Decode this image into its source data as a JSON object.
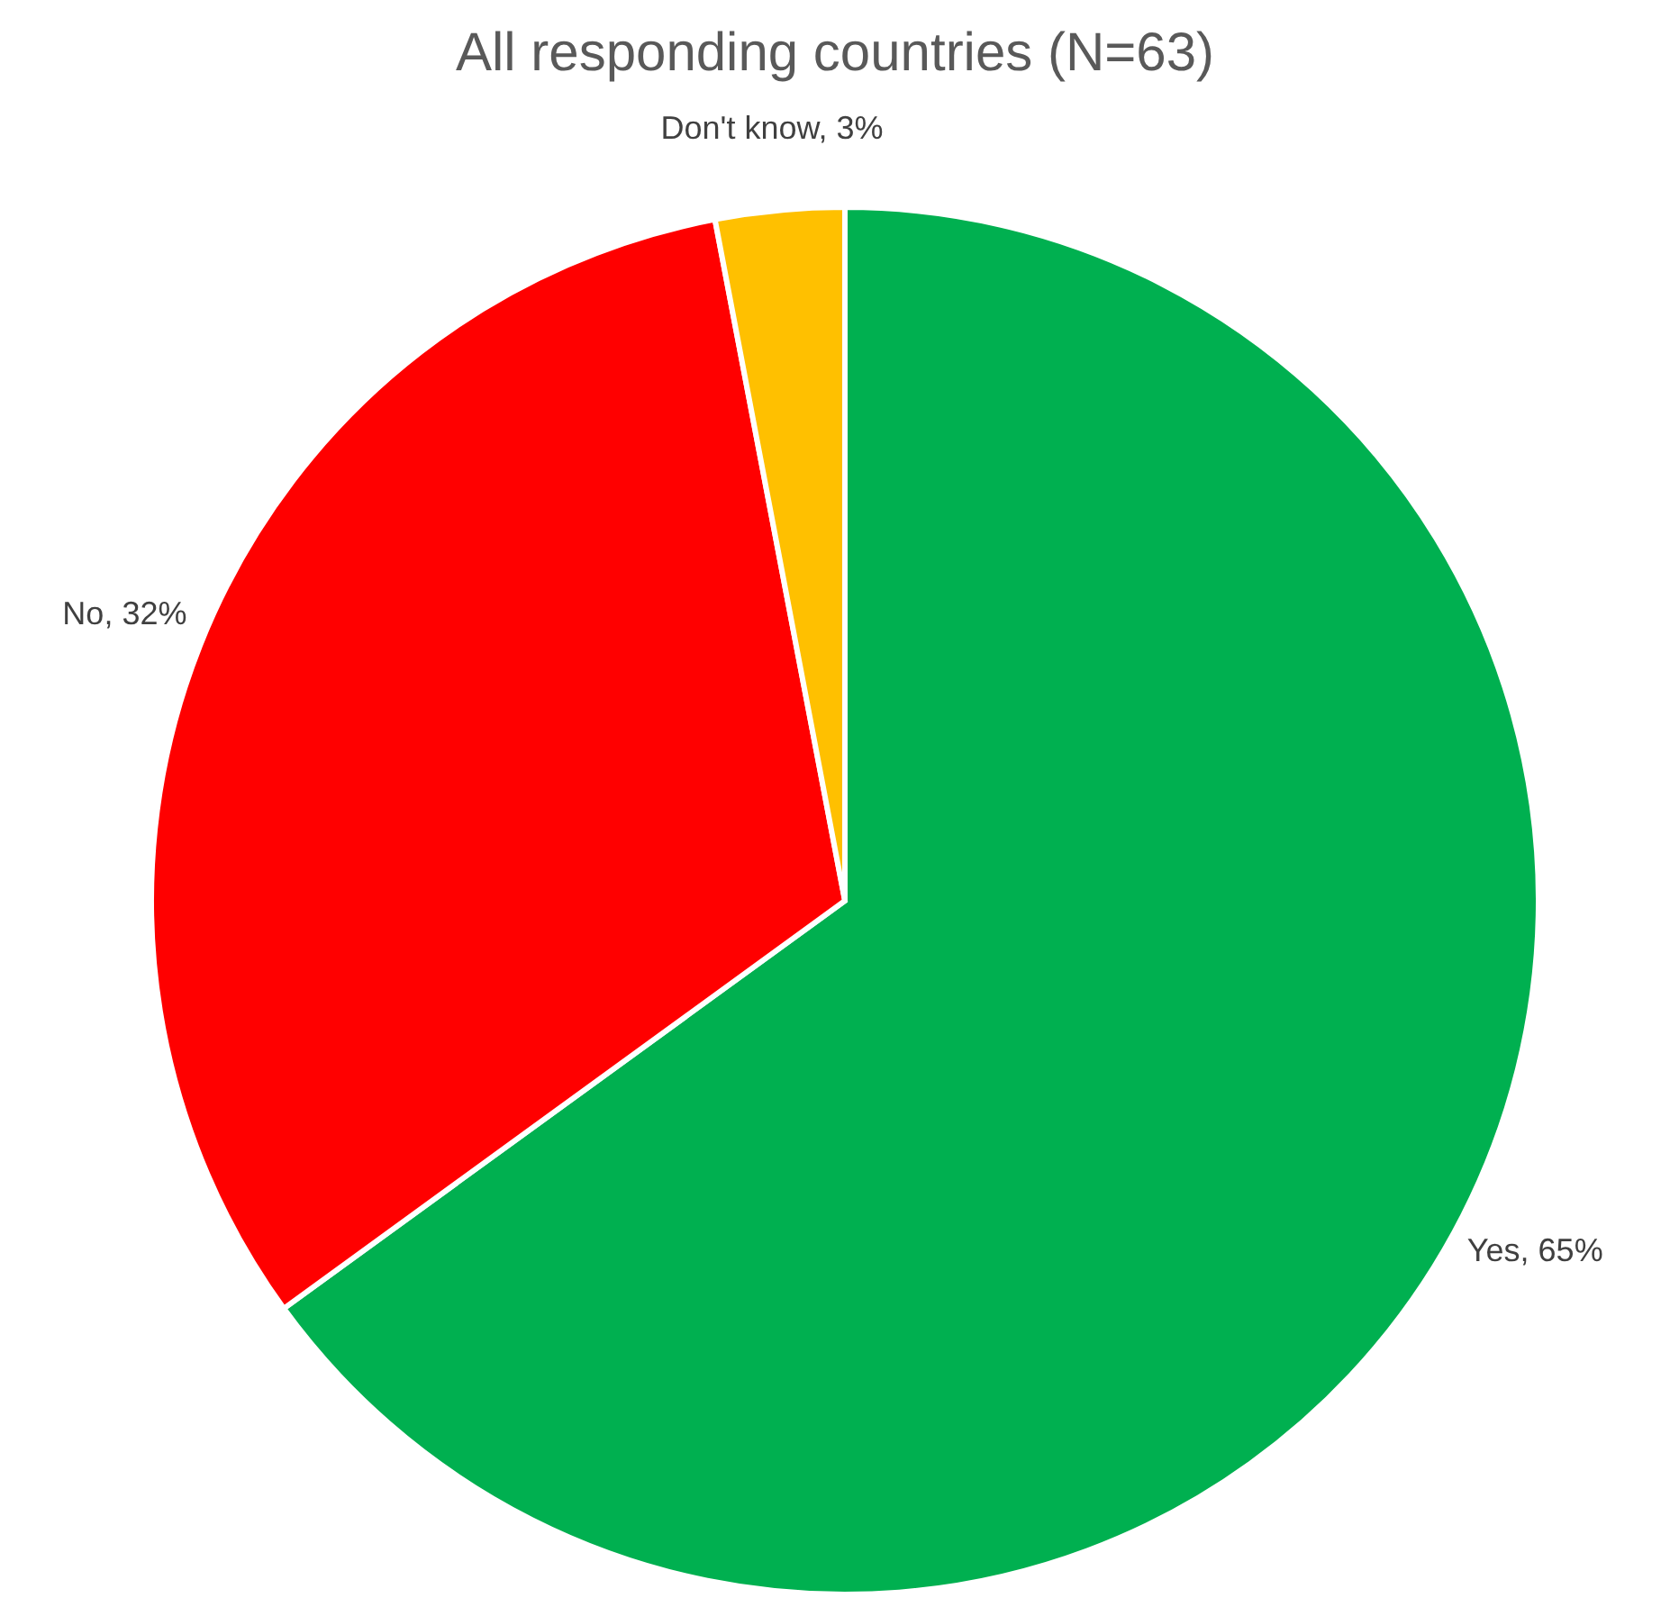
{
  "chart_data": {
    "type": "pie",
    "title": "All responding countries (N=63)",
    "categories": [
      "Yes",
      "No",
      "Don't know"
    ],
    "values": [
      65,
      32,
      3
    ],
    "colors": [
      "#00b050",
      "#ff0000",
      "#ffc000"
    ],
    "value_labels": [
      "65%",
      "32%",
      "3%"
    ]
  }
}
